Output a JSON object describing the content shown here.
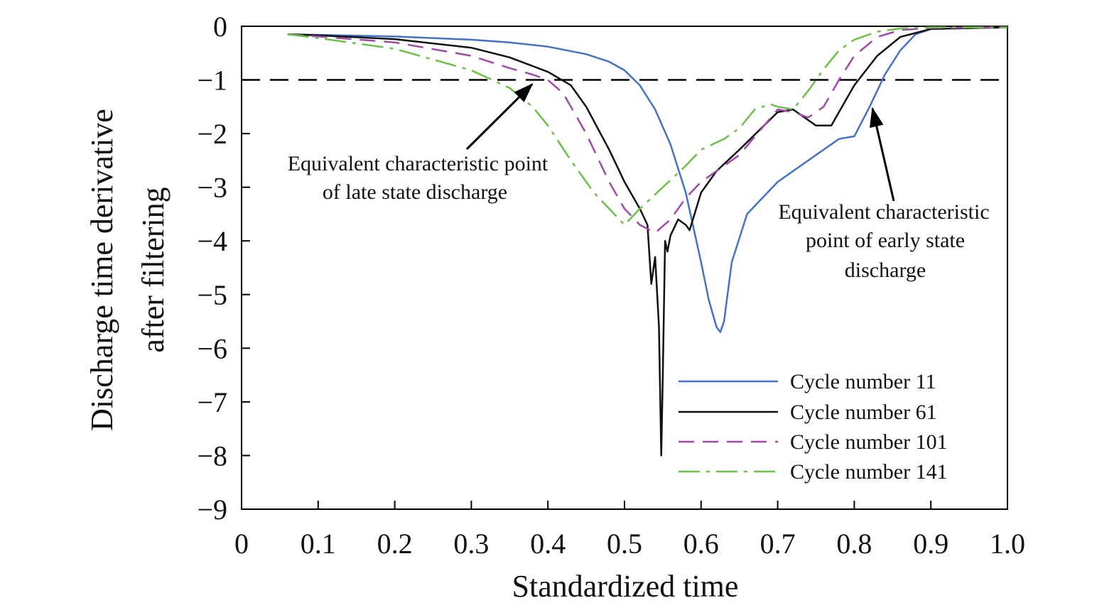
{
  "chart_data": {
    "type": "line",
    "xlabel": "Standardized time",
    "ylabel_lines": [
      "Discharge time derivative",
      "after filtering"
    ],
    "xlim": [
      0,
      1.0
    ],
    "ylim": [
      -9,
      0
    ],
    "x_ticks": [
      "0",
      "0.1",
      "0.2",
      "0.3",
      "0.4",
      "0.5",
      "0.6",
      "0.7",
      "0.8",
      "0.9",
      "1.0"
    ],
    "y_ticks": [
      "0",
      "−1",
      "−2",
      "−3",
      "−4",
      "−5",
      "−6",
      "−7",
      "−8",
      "−9"
    ],
    "grid": false,
    "legend_position": "bottom-right",
    "reference_line": {
      "y": -1,
      "style": "dashed",
      "color": "#000000"
    },
    "annotations": [
      {
        "lines": [
          "Equivalent characteristic point",
          "of late state discharge"
        ],
        "point": [
          0.385,
          -1
        ]
      },
      {
        "lines": [
          "Equivalent characteristic",
          "point of early state",
          "discharge"
        ],
        "point": [
          0.82,
          -1.45
        ]
      }
    ],
    "series": [
      {
        "name": "Cycle number 11",
        "color": "#4472c4",
        "dash": "solid",
        "x": [
          0.06,
          0.1,
          0.2,
          0.3,
          0.35,
          0.4,
          0.45,
          0.48,
          0.5,
          0.52,
          0.54,
          0.56,
          0.58,
          0.6,
          0.61,
          0.62,
          0.625,
          0.63,
          0.64,
          0.66,
          0.7,
          0.75,
          0.78,
          0.8,
          0.82,
          0.84,
          0.86,
          0.88,
          0.9,
          1.0
        ],
        "y": [
          -0.15,
          -0.16,
          -0.19,
          -0.25,
          -0.3,
          -0.38,
          -0.52,
          -0.66,
          -0.82,
          -1.1,
          -1.55,
          -2.2,
          -3.1,
          -4.4,
          -5.1,
          -5.6,
          -5.7,
          -5.5,
          -4.4,
          -3.5,
          -2.9,
          -2.4,
          -2.1,
          -2.05,
          -1.5,
          -0.9,
          -0.45,
          -0.15,
          -0.05,
          -0.02
        ]
      },
      {
        "name": "Cycle number 61",
        "color": "#111111",
        "dash": "solid",
        "x": [
          0.06,
          0.1,
          0.2,
          0.3,
          0.35,
          0.4,
          0.43,
          0.45,
          0.48,
          0.5,
          0.52,
          0.53,
          0.535,
          0.54,
          0.545,
          0.548,
          0.55,
          0.553,
          0.556,
          0.56,
          0.57,
          0.58,
          0.585,
          0.6,
          0.62,
          0.65,
          0.7,
          0.72,
          0.75,
          0.77,
          0.8,
          0.83,
          0.86,
          0.9,
          1.0
        ],
        "y": [
          -0.15,
          -0.17,
          -0.24,
          -0.4,
          -0.58,
          -0.85,
          -1.1,
          -1.5,
          -2.3,
          -2.9,
          -3.4,
          -3.7,
          -4.8,
          -4.3,
          -5.6,
          -8.0,
          -6.5,
          -4.0,
          -4.2,
          -3.9,
          -3.6,
          -3.7,
          -3.8,
          -3.1,
          -2.7,
          -2.3,
          -1.6,
          -1.55,
          -1.85,
          -1.85,
          -1.1,
          -0.55,
          -0.2,
          -0.05,
          -0.02
        ]
      },
      {
        "name": "Cycle number 101",
        "color": "#a04aa8",
        "dash": "dashed",
        "x": [
          0.06,
          0.1,
          0.2,
          0.3,
          0.35,
          0.38,
          0.4,
          0.42,
          0.45,
          0.48,
          0.5,
          0.52,
          0.54,
          0.56,
          0.58,
          0.6,
          0.65,
          0.7,
          0.72,
          0.74,
          0.76,
          0.78,
          0.8,
          0.83,
          0.86,
          0.9,
          1.0
        ],
        "y": [
          -0.15,
          -0.19,
          -0.3,
          -0.55,
          -0.78,
          -0.9,
          -1.0,
          -1.25,
          -2.0,
          -2.9,
          -3.4,
          -3.7,
          -3.85,
          -3.6,
          -3.2,
          -2.9,
          -2.4,
          -1.55,
          -1.6,
          -1.7,
          -1.5,
          -1.0,
          -0.55,
          -0.2,
          -0.07,
          -0.03,
          -0.02
        ]
      },
      {
        "name": "Cycle number 141",
        "color": "#6cc04a",
        "dash": "dashdot",
        "x": [
          0.06,
          0.1,
          0.2,
          0.3,
          0.35,
          0.38,
          0.4,
          0.43,
          0.46,
          0.48,
          0.5,
          0.52,
          0.55,
          0.58,
          0.6,
          0.63,
          0.65,
          0.67,
          0.69,
          0.7,
          0.72,
          0.74,
          0.76,
          0.78,
          0.8,
          0.83,
          0.86,
          0.9,
          1.0
        ],
        "y": [
          -0.15,
          -0.22,
          -0.42,
          -0.82,
          -1.15,
          -1.5,
          -1.85,
          -2.5,
          -3.1,
          -3.4,
          -3.7,
          -3.4,
          -3.0,
          -2.6,
          -2.3,
          -2.1,
          -1.9,
          -1.55,
          -1.45,
          -1.5,
          -1.55,
          -1.2,
          -0.8,
          -0.45,
          -0.25,
          -0.1,
          -0.04,
          -0.02,
          -0.02
        ]
      }
    ]
  }
}
